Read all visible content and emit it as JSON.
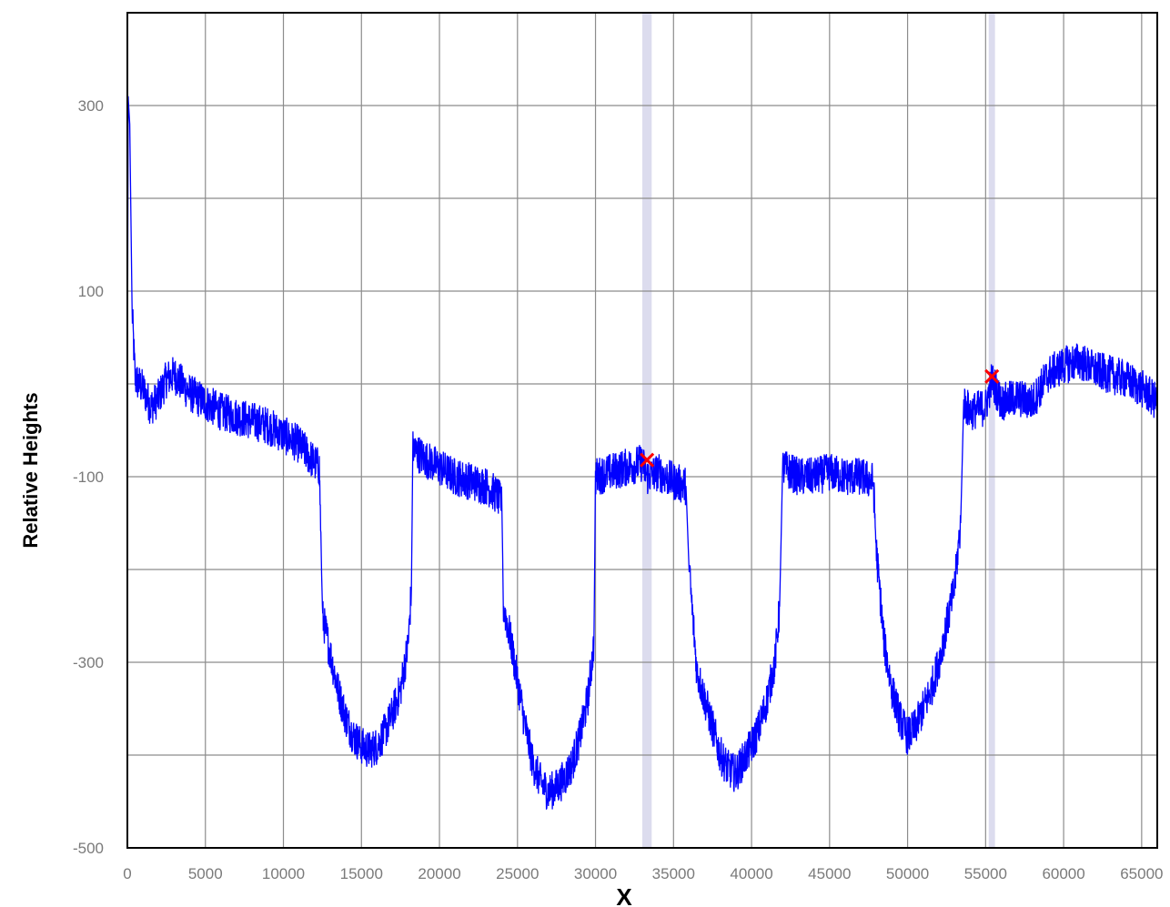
{
  "chart_data": {
    "type": "line",
    "title": "",
    "xlabel": "X",
    "ylabel": "Relative Heights",
    "xlim": [
      0,
      66000
    ],
    "ylim": [
      -500,
      400
    ],
    "x_ticks": [
      0,
      5000,
      10000,
      15000,
      20000,
      25000,
      30000,
      35000,
      40000,
      45000,
      50000,
      55000,
      60000,
      65000
    ],
    "y_ticks": [
      -500,
      -300,
      -100,
      100,
      300
    ],
    "grid": true,
    "colors": {
      "line": "#0000ff",
      "marker": "#ff0000",
      "band": "#dcdcee",
      "grid": "#8c8c8c"
    },
    "bands": [
      {
        "x_start": 33000,
        "x_end": 33600
      },
      {
        "x_start": 55200,
        "x_end": 55600
      }
    ],
    "markers": [
      {
        "x": 33300,
        "y": -82,
        "symbol": "x"
      },
      {
        "x": 55400,
        "y": 8,
        "symbol": "x"
      }
    ],
    "series": [
      {
        "points": [
          [
            0,
            -60
          ],
          [
            50,
            310
          ],
          [
            150,
            280
          ],
          [
            300,
            80
          ],
          [
            500,
            5
          ],
          [
            1000,
            -5
          ],
          [
            1500,
            -25
          ],
          [
            2000,
            -15
          ],
          [
            2500,
            5
          ],
          [
            3000,
            10
          ],
          [
            3500,
            0
          ],
          [
            4000,
            -10
          ],
          [
            5000,
            -20
          ],
          [
            6000,
            -30
          ],
          [
            7000,
            -35
          ],
          [
            8000,
            -40
          ],
          [
            9000,
            -45
          ],
          [
            10000,
            -55
          ],
          [
            11000,
            -65
          ],
          [
            11500,
            -75
          ],
          [
            12000,
            -85
          ],
          [
            12300,
            -90
          ],
          [
            12400,
            -160
          ],
          [
            12500,
            -250
          ],
          [
            13000,
            -290
          ],
          [
            13500,
            -330
          ],
          [
            14000,
            -360
          ],
          [
            14500,
            -380
          ],
          [
            15000,
            -390
          ],
          [
            15500,
            -395
          ],
          [
            16000,
            -390
          ],
          [
            16500,
            -375
          ],
          [
            17000,
            -355
          ],
          [
            17500,
            -330
          ],
          [
            18000,
            -280
          ],
          [
            18200,
            -220
          ],
          [
            18300,
            -70
          ],
          [
            19000,
            -80
          ],
          [
            20000,
            -90
          ],
          [
            21000,
            -100
          ],
          [
            22000,
            -105
          ],
          [
            23000,
            -110
          ],
          [
            23700,
            -120
          ],
          [
            24000,
            -130
          ],
          [
            24100,
            -240
          ],
          [
            24500,
            -270
          ],
          [
            25000,
            -320
          ],
          [
            25500,
            -370
          ],
          [
            26000,
            -410
          ],
          [
            26500,
            -430
          ],
          [
            27000,
            -440
          ],
          [
            27500,
            -435
          ],
          [
            28000,
            -425
          ],
          [
            28500,
            -410
          ],
          [
            29000,
            -380
          ],
          [
            29500,
            -340
          ],
          [
            29900,
            -280
          ],
          [
            30000,
            -100
          ],
          [
            31000,
            -95
          ],
          [
            32000,
            -90
          ],
          [
            33000,
            -85
          ],
          [
            33300,
            -100
          ],
          [
            34000,
            -95
          ],
          [
            35000,
            -105
          ],
          [
            35800,
            -110
          ],
          [
            36000,
            -200
          ],
          [
            36500,
            -310
          ],
          [
            37000,
            -340
          ],
          [
            37500,
            -370
          ],
          [
            38000,
            -400
          ],
          [
            38500,
            -415
          ],
          [
            39000,
            -420
          ],
          [
            39500,
            -405
          ],
          [
            40000,
            -390
          ],
          [
            40500,
            -370
          ],
          [
            41000,
            -340
          ],
          [
            41500,
            -300
          ],
          [
            41800,
            -240
          ],
          [
            42000,
            -90
          ],
          [
            43000,
            -100
          ],
          [
            44000,
            -100
          ],
          [
            45000,
            -95
          ],
          [
            46000,
            -100
          ],
          [
            47000,
            -100
          ],
          [
            47800,
            -105
          ],
          [
            48000,
            -180
          ],
          [
            48500,
            -280
          ],
          [
            49000,
            -330
          ],
          [
            49500,
            -360
          ],
          [
            50000,
            -380
          ],
          [
            50500,
            -370
          ],
          [
            51000,
            -350
          ],
          [
            51500,
            -330
          ],
          [
            52000,
            -300
          ],
          [
            52500,
            -260
          ],
          [
            53000,
            -220
          ],
          [
            53400,
            -150
          ],
          [
            53600,
            -20
          ],
          [
            54000,
            -30
          ],
          [
            55000,
            -25
          ],
          [
            55400,
            5
          ],
          [
            56000,
            -20
          ],
          [
            57000,
            -15
          ],
          [
            58000,
            -20
          ],
          [
            59000,
            10
          ],
          [
            60000,
            20
          ],
          [
            61000,
            25
          ],
          [
            62000,
            15
          ],
          [
            63000,
            10
          ],
          [
            64000,
            5
          ],
          [
            65000,
            -5
          ],
          [
            66000,
            -20
          ]
        ]
      }
    ]
  }
}
